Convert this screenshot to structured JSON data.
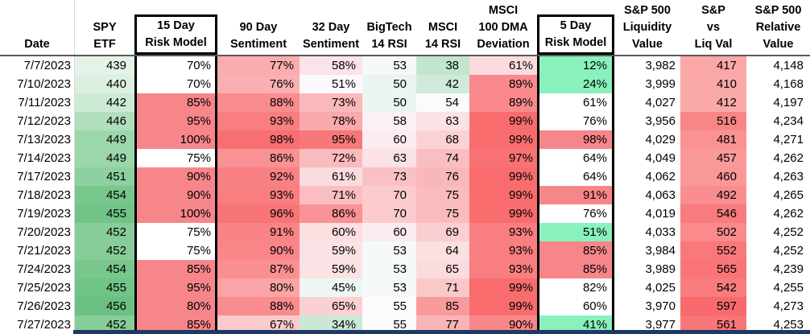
{
  "sheet": {
    "columns": [
      {
        "id": "date",
        "lines": [
          "Date"
        ],
        "format": "none"
      },
      {
        "id": "spy",
        "lines": [
          "SPY",
          "ETF"
        ],
        "format": "spy",
        "gridline": true
      },
      {
        "id": "risk15",
        "lines": [
          "15 Day",
          "Risk Model"
        ],
        "format": "risk15",
        "boxed": true
      },
      {
        "id": "sent90",
        "lines": [
          "90 Day",
          "Sentiment"
        ],
        "format": "sent"
      },
      {
        "id": "sent32",
        "lines": [
          "32 Day",
          "Sentiment"
        ],
        "format": "sent"
      },
      {
        "id": "rsiBig",
        "lines": [
          "BigTech",
          "14 RSI"
        ],
        "format": "rsi"
      },
      {
        "id": "rsiMsci",
        "lines": [
          "MSCI",
          "14 RSI"
        ],
        "format": "rsi"
      },
      {
        "id": "deviation",
        "lines": [
          "MSCI",
          "100 DMA",
          "Deviation"
        ],
        "format": "sent"
      },
      {
        "id": "risk5",
        "lines": [
          "5 Day",
          "Risk Model"
        ],
        "format": "risk5",
        "boxed": true
      },
      {
        "id": "liq",
        "lines": [
          "S&P 500",
          "Liquidity",
          "Value"
        ],
        "format": "none"
      },
      {
        "id": "spVsLiq",
        "lines": [
          "S&P",
          "vs",
          "Liq Val"
        ],
        "format": "liqdiff"
      },
      {
        "id": "rel",
        "lines": [
          "S&P 500",
          "Relative",
          "Value"
        ],
        "format": "none"
      }
    ],
    "rows": [
      [
        "7/7/2023",
        "439",
        "70%",
        "77%",
        "58%",
        "53",
        "38",
        "61%",
        "12%",
        "3,982",
        "417",
        "4,148"
      ],
      [
        "7/10/2023",
        "440",
        "70%",
        "76%",
        "51%",
        "50",
        "42",
        "89%",
        "24%",
        "3,999",
        "410",
        "4,168"
      ],
      [
        "7/11/2023",
        "442",
        "85%",
        "88%",
        "73%",
        "50",
        "54",
        "89%",
        "61%",
        "4,027",
        "412",
        "4,197"
      ],
      [
        "7/12/2023",
        "446",
        "95%",
        "93%",
        "78%",
        "58",
        "63",
        "99%",
        "76%",
        "3,956",
        "516",
        "4,234"
      ],
      [
        "7/13/2023",
        "449",
        "100%",
        "98%",
        "95%",
        "60",
        "68",
        "99%",
        "98%",
        "4,029",
        "481",
        "4,271"
      ],
      [
        "7/14/2023",
        "449",
        "75%",
        "86%",
        "72%",
        "63",
        "74",
        "97%",
        "64%",
        "4,049",
        "457",
        "4,262"
      ],
      [
        "7/17/2023",
        "451",
        "90%",
        "92%",
        "61%",
        "73",
        "76",
        "99%",
        "64%",
        "4,062",
        "460",
        "4,263"
      ],
      [
        "7/18/2023",
        "454",
        "90%",
        "93%",
        "71%",
        "70",
        "75",
        "99%",
        "91%",
        "4,063",
        "492",
        "4,265"
      ],
      [
        "7/19/2023",
        "455",
        "100%",
        "96%",
        "86%",
        "70",
        "75",
        "99%",
        "76%",
        "4,019",
        "546",
        "4,262"
      ],
      [
        "7/20/2023",
        "452",
        "75%",
        "91%",
        "60%",
        "60",
        "69",
        "93%",
        "51%",
        "4,033",
        "502",
        "4,252"
      ],
      [
        "7/21/2023",
        "452",
        "75%",
        "90%",
        "59%",
        "53",
        "64",
        "93%",
        "85%",
        "3,984",
        "552",
        "4,252"
      ],
      [
        "7/24/2023",
        "454",
        "85%",
        "87%",
        "59%",
        "53",
        "65",
        "93%",
        "85%",
        "3,989",
        "565",
        "4,239"
      ],
      [
        "7/25/2023",
        "455",
        "95%",
        "80%",
        "45%",
        "53",
        "71",
        "99%",
        "82%",
        "4,025",
        "542",
        "4,255"
      ],
      [
        "7/26/2023",
        "456",
        "80%",
        "88%",
        "65%",
        "55",
        "85",
        "99%",
        "60%",
        "3,970",
        "597",
        "4,273"
      ],
      [
        "7/27/2023",
        "452",
        "85%",
        "67%",
        "34%",
        "55",
        "77",
        "90%",
        "41%",
        "3,977",
        "561",
        "4,253"
      ]
    ]
  },
  "formats": {
    "none": {
      "kind": "rules",
      "rules": [],
      "default": "#FFFFFF"
    },
    "spy": {
      "kind": "scale",
      "stops": [
        [
          435,
          "#FFFFFF"
        ],
        [
          457,
          "#63BE7B"
        ]
      ]
    },
    "risk15": {
      "kind": "rules",
      "rules": [
        {
          "op": "gte",
          "value": 80,
          "color": "#F7868A"
        }
      ],
      "default": "#FFFFFF"
    },
    "sent": {
      "kind": "scale",
      "stops": [
        [
          0,
          "#63BE7B"
        ],
        [
          50,
          "#FCFCFF"
        ],
        [
          100,
          "#F8696B"
        ]
      ]
    },
    "rsi": {
      "kind": "scale",
      "stops": [
        [
          10,
          "#63BE7B"
        ],
        [
          55,
          "#FCFCFF"
        ],
        [
          100,
          "#F8696B"
        ]
      ]
    },
    "risk5": {
      "kind": "rules",
      "rules": [
        {
          "op": "lte",
          "value": 55,
          "color": "#88F1BC"
        },
        {
          "op": "gte",
          "value": 85,
          "color": "#F7868A"
        }
      ],
      "default": "#FFFFFF"
    },
    "liqdiff": {
      "kind": "scale",
      "stops": [
        [
          150,
          "#FFFFFF"
        ],
        [
          600,
          "#F8696B"
        ]
      ]
    }
  },
  "colors": {
    "box_border": "#000000",
    "header_underline": "#595959",
    "date_gridline": "#D9D9D9",
    "bottom_band": "#1F3864",
    "text": "#000000",
    "scale_green": "#63BE7B",
    "scale_red": "#F8696B",
    "mint_green": "#88F1BC",
    "salmon": "#F7868A"
  }
}
